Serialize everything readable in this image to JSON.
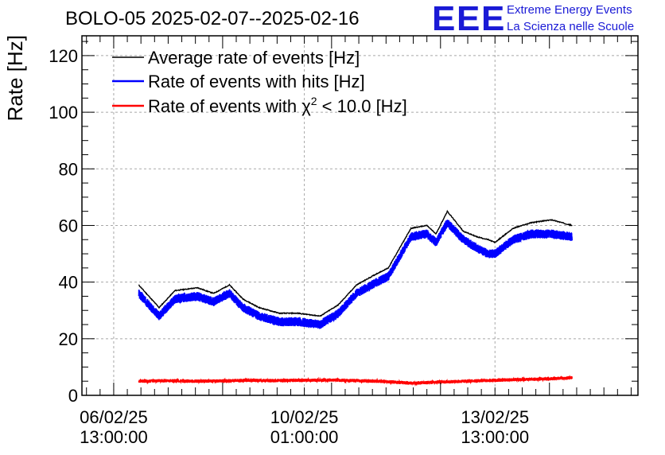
{
  "chart_data": {
    "type": "line",
    "title": "BOLO-05 2025-02-07--2025-02-16",
    "ylabel": "Rate [Hz]",
    "xlabel": "",
    "ylim": [
      0,
      127
    ],
    "xlim": [
      "2025-02-05 23:00",
      "2025-02-16 04:00"
    ],
    "grid": true,
    "legend_position": "top-left",
    "yticks": [
      0,
      20,
      40,
      60,
      80,
      100,
      120
    ],
    "xticks": [
      {
        "at": "2025-02-06 13:00",
        "line1": "06/02/25",
        "line2": "13:00:00"
      },
      {
        "at": "2025-02-10 01:00",
        "line1": "10/02/25",
        "line2": "01:00:00"
      },
      {
        "at": "2025-02-13 13:00",
        "line1": "13/02/25",
        "line2": "13:00:00"
      }
    ],
    "series": [
      {
        "name": "Average rate of events [Hz]",
        "color": "#000000",
        "x": [
          "2025-02-07 00:00",
          "2025-02-07 09:00",
          "2025-02-07 16:00",
          "2025-02-08 02:00",
          "2025-02-08 09:00",
          "2025-02-08 16:00",
          "2025-02-08 22:00",
          "2025-02-09 05:00",
          "2025-02-09 14:00",
          "2025-02-09 22:00",
          "2025-02-10 08:00",
          "2025-02-10 16:00",
          "2025-02-11 00:00",
          "2025-02-11 09:00",
          "2025-02-11 14:00",
          "2025-02-12 00:00",
          "2025-02-12 07:00",
          "2025-02-12 11:00",
          "2025-02-12 16:00",
          "2025-02-12 23:00",
          "2025-02-13 05:00",
          "2025-02-13 10:00",
          "2025-02-13 13:00",
          "2025-02-13 21:00",
          "2025-02-14 05:00",
          "2025-02-14 14:00",
          "2025-02-14 23:00"
        ],
        "y": [
          39,
          31,
          37,
          38,
          36,
          39,
          34,
          31,
          29,
          29,
          28,
          32,
          39,
          43,
          45,
          59,
          60,
          57,
          65,
          58,
          56,
          55,
          54,
          59,
          61,
          62,
          60
        ]
      },
      {
        "name": "Rate of events with hits [Hz]",
        "color": "#0000ff",
        "x": [
          "2025-02-07 00:00",
          "2025-02-07 09:00",
          "2025-02-07 16:00",
          "2025-02-08 02:00",
          "2025-02-08 09:00",
          "2025-02-08 16:00",
          "2025-02-08 22:00",
          "2025-02-09 05:00",
          "2025-02-09 14:00",
          "2025-02-09 22:00",
          "2025-02-10 08:00",
          "2025-02-10 16:00",
          "2025-02-11 00:00",
          "2025-02-11 09:00",
          "2025-02-11 14:00",
          "2025-02-12 00:00",
          "2025-02-12 07:00",
          "2025-02-12 11:00",
          "2025-02-12 16:00",
          "2025-02-12 23:00",
          "2025-02-13 05:00",
          "2025-02-13 10:00",
          "2025-02-13 13:00",
          "2025-02-13 21:00",
          "2025-02-14 05:00",
          "2025-02-14 14:00",
          "2025-02-14 23:00"
        ],
        "y": [
          36,
          28,
          34,
          35,
          33,
          36,
          31,
          28,
          26,
          26,
          25,
          29,
          36,
          40,
          42,
          56,
          57,
          54,
          61,
          55,
          52,
          50,
          50,
          55,
          57,
          57,
          56
        ]
      },
      {
        "name": "Rate of events with χ² < 10.0 [Hz]",
        "color": "#ff0000",
        "x": [
          "2025-02-07 00:00",
          "2025-02-07 12:00",
          "2025-02-08 00:00",
          "2025-02-08 12:00",
          "2025-02-09 00:00",
          "2025-02-09 12:00",
          "2025-02-10 00:00",
          "2025-02-10 12:00",
          "2025-02-11 00:00",
          "2025-02-11 12:00",
          "2025-02-12 00:00",
          "2025-02-12 12:00",
          "2025-02-13 00:00",
          "2025-02-13 12:00",
          "2025-02-14 00:00",
          "2025-02-14 12:00",
          "2025-02-14 23:00"
        ],
        "y": [
          5,
          5.2,
          5,
          5.1,
          5.3,
          5.2,
          5.3,
          5.4,
          5.2,
          4.9,
          4.3,
          4.7,
          5.0,
          5.3,
          5.6,
          5.8,
          6.2
        ]
      }
    ]
  },
  "legend": {
    "avg": "Average rate of events [Hz]",
    "hits": "Rate of events with hits [Hz]",
    "chi_pre": "Rate of events with χ",
    "chi_sup": "2",
    "chi_post": " < 10.0 [Hz]"
  },
  "logo": {
    "letters": [
      "E",
      "E",
      "E"
    ],
    "line1": "Extreme Energy Events",
    "line2": "La Scienza nelle Scuole",
    "color": "#1a1ad6"
  }
}
